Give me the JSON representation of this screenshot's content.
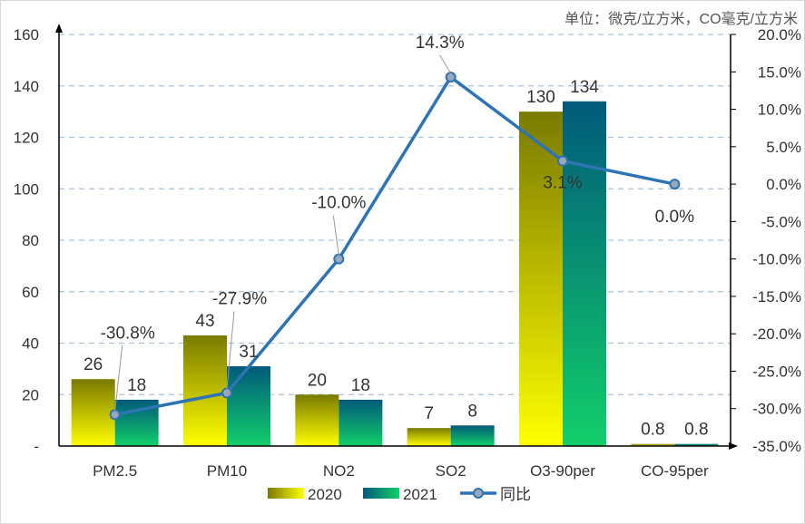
{
  "unit_note": "单位：微克/立方米，CO毫克/立方米",
  "chart_data": {
    "type": "bar",
    "categories": [
      "PM2.5",
      "PM10",
      "NO2",
      "SO2",
      "O3-90per",
      "CO-95per"
    ],
    "series": [
      {
        "name": "2020",
        "type": "bar",
        "axis": "left",
        "values": [
          26,
          43,
          20,
          7,
          130,
          0.8
        ],
        "labels": [
          "26",
          "43",
          "20",
          "7",
          "130",
          "0.8"
        ],
        "colors": [
          "#7a7a00",
          "#ffff00"
        ]
      },
      {
        "name": "2021",
        "type": "bar",
        "axis": "left",
        "values": [
          18,
          31,
          18,
          8,
          134,
          0.8
        ],
        "labels": [
          "18",
          "31",
          "18",
          "8",
          "134",
          "0.8"
        ],
        "colors": [
          "#005a7a",
          "#12cf6a"
        ]
      },
      {
        "name": "同比",
        "type": "line",
        "axis": "right",
        "values": [
          -30.8,
          -27.9,
          -10.0,
          14.3,
          3.1,
          0.0
        ],
        "labels": [
          "-30.8%",
          "-27.9%",
          "-10.0%",
          "14.3%",
          "3.1%",
          "0.0%"
        ],
        "color": "#2e74b5"
      }
    ],
    "y_left": {
      "min": 0,
      "max": 160,
      "step": 20,
      "ticks": [
        "-",
        "20",
        "40",
        "60",
        "80",
        "100",
        "120",
        "140",
        "160"
      ]
    },
    "y_right": {
      "min": -35,
      "max": 20,
      "step": 5,
      "ticks": [
        "-35.0%",
        "-30.0%",
        "-25.0%",
        "-20.0%",
        "-15.0%",
        "-10.0%",
        "-5.0%",
        "0.0%",
        "5.0%",
        "10.0%",
        "15.0%",
        "20.0%"
      ]
    },
    "grid": true,
    "legend_position": "bottom"
  }
}
